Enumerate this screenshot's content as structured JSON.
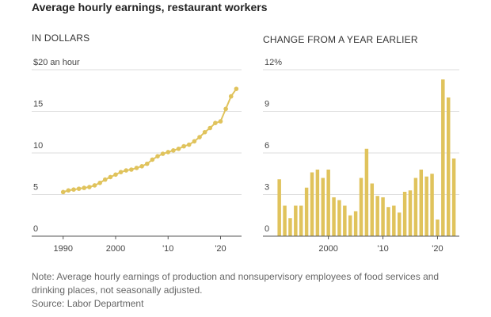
{
  "title": "Average hourly earnings, restaurant workers",
  "chart_data": [
    {
      "type": "line",
      "subtitle": "IN DOLLARS",
      "x": [
        1990,
        1991,
        1992,
        1993,
        1994,
        1995,
        1996,
        1997,
        1998,
        1999,
        2000,
        2001,
        2002,
        2003,
        2004,
        2005,
        2006,
        2007,
        2008,
        2009,
        2010,
        2011,
        2012,
        2013,
        2014,
        2015,
        2016,
        2017,
        2018,
        2019,
        2020,
        2021,
        2022,
        2023
      ],
      "values": [
        5.3,
        5.5,
        5.6,
        5.7,
        5.8,
        5.9,
        6.1,
        6.4,
        6.8,
        7.1,
        7.4,
        7.7,
        7.9,
        8.0,
        8.2,
        8.4,
        8.7,
        9.2,
        9.6,
        9.9,
        10.1,
        10.3,
        10.5,
        10.8,
        11.0,
        11.4,
        11.9,
        12.5,
        13.0,
        13.6,
        13.8,
        15.3,
        16.8,
        17.7
      ],
      "color": "#e0c35c",
      "xlim": [
        1984,
        2024
      ],
      "ylim": [
        0,
        20
      ],
      "xticks": [
        1990,
        2000,
        {
          "value": 2010,
          "label": "'10"
        },
        {
          "value": 2020,
          "label": "'20"
        }
      ],
      "yticks": [
        0,
        5,
        10,
        15,
        {
          "value": 20,
          "label": "$20 an hour"
        }
      ],
      "grid": true
    },
    {
      "type": "bar",
      "subtitle": "CHANGE FROM A YEAR EARLIER",
      "x": [
        1991,
        1992,
        1993,
        1994,
        1995,
        1996,
        1997,
        1998,
        1999,
        2000,
        2001,
        2002,
        2003,
        2004,
        2005,
        2006,
        2007,
        2008,
        2009,
        2010,
        2011,
        2012,
        2013,
        2014,
        2015,
        2016,
        2017,
        2018,
        2019,
        2020,
        2021,
        2022,
        2023
      ],
      "values": [
        4.1,
        2.2,
        1.3,
        2.2,
        2.2,
        3.5,
        4.6,
        4.8,
        4.2,
        4.8,
        2.8,
        2.6,
        2.2,
        1.5,
        1.8,
        4.2,
        6.3,
        3.8,
        2.9,
        2.8,
        2.1,
        2.2,
        1.7,
        3.2,
        3.3,
        4.2,
        4.8,
        4.3,
        4.5,
        1.2,
        11.3,
        10.0,
        5.6
      ],
      "color": "#e0c35c",
      "xlim": [
        1988,
        2024
      ],
      "ylim": [
        0,
        12
      ],
      "xticks": [
        2000,
        {
          "value": 2010,
          "label": "'10"
        },
        {
          "value": 2020,
          "label": "'20"
        }
      ],
      "yticks": [
        0,
        3,
        6,
        9,
        {
          "value": 12,
          "label": "12%"
        }
      ],
      "grid": true
    }
  ],
  "note": "Note: Average hourly earnings of production and nonsupervisory employees of food services and drinking places, not seasonally adjusted.",
  "source": "Source: Labor Department"
}
